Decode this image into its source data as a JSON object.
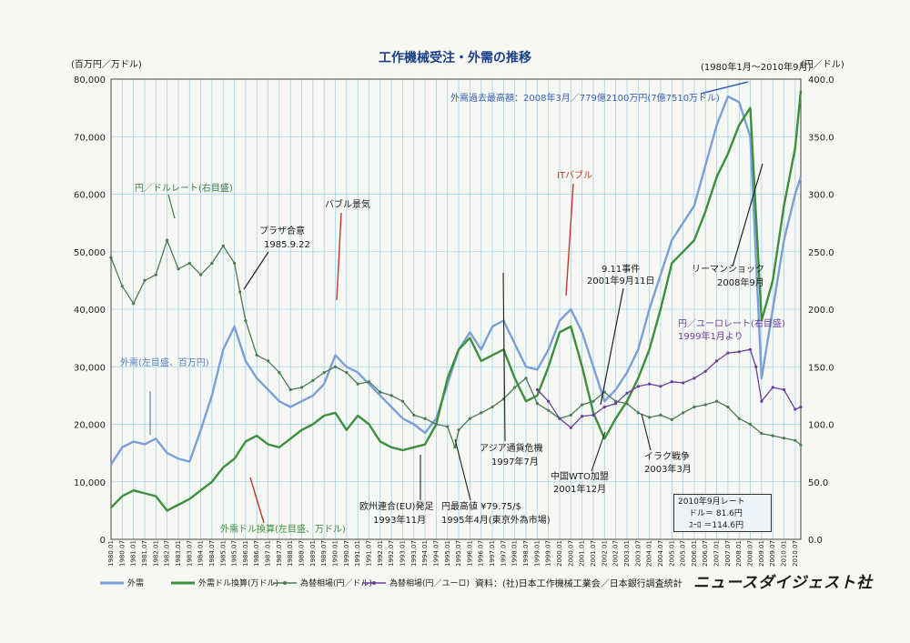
{
  "chart_data": {
    "type": "line",
    "title": "工作機械受注・外需の推移",
    "period_note": "(1980年1月～2010年9月)",
    "left_unit": "(百万円／万ドル)",
    "right_unit": "(円／ドル)",
    "y_left": {
      "min": 0,
      "max": 80000,
      "ticks": [
        0,
        10000,
        20000,
        30000,
        40000,
        50000,
        60000,
        70000,
        80000
      ],
      "tick_labels": [
        "0",
        "10,000",
        "20,000",
        "30,000",
        "40,000",
        "50,000",
        "60,000",
        "70,000",
        "80,000"
      ]
    },
    "y_right": {
      "min": 0,
      "max": 400,
      "ticks": [
        0,
        50,
        100,
        150,
        200,
        250,
        300,
        350,
        400
      ],
      "tick_labels": [
        "0.0",
        "50.0",
        "100.0",
        "150.0",
        "200.0",
        "250.0",
        "300.0",
        "350.0",
        "400.0"
      ]
    },
    "x_range": [
      1980.0,
      2010.75
    ],
    "x_tick_labels": [
      "1980.01",
      "1980.07",
      "1981.01",
      "1981.07",
      "1982.01",
      "1982.07",
      "1983.01",
      "1983.07",
      "1984.01",
      "1984.07",
      "1985.01",
      "1985.07",
      "1986.01",
      "1986.07",
      "1987.01",
      "1987.07",
      "1988.01",
      "1988.07",
      "1989.01",
      "1989.07",
      "1990.01",
      "1990.07",
      "1991.01",
      "1991.07",
      "1992.01",
      "1992.07",
      "1993.01",
      "1993.07",
      "1994.01",
      "1994.07",
      "1995.01",
      "1995.07",
      "1996.01",
      "1996.07",
      "1997.01",
      "1997.07",
      "1998.01",
      "1998.07",
      "1999.01",
      "1999.07",
      "2000.01",
      "2000.07",
      "2001.01",
      "2001.07",
      "2002.01",
      "2002.07",
      "2003.01",
      "2003.07",
      "2004.01",
      "2004.07",
      "2005.01",
      "2005.07",
      "2006.01",
      "2006.07",
      "2007.01",
      "2007.07",
      "2008.01",
      "2008.07",
      "2009.01",
      "2009.07",
      "2010.01",
      "2010.07"
    ],
    "grid": true,
    "legend_position": "bottom",
    "series": [
      {
        "name": "外需",
        "axis": "left",
        "color": "#7b9fd6",
        "x": [
          1980.0,
          1980.5,
          1981.0,
          1981.5,
          1982.0,
          1982.5,
          1983.0,
          1983.5,
          1984.0,
          1984.5,
          1985.0,
          1985.5,
          1986.0,
          1986.5,
          1987.0,
          1987.5,
          1988.0,
          1988.5,
          1989.0,
          1989.5,
          1990.0,
          1990.5,
          1991.0,
          1991.5,
          1992.0,
          1992.5,
          1993.0,
          1993.5,
          1994.0,
          1994.5,
          1995.0,
          1995.5,
          1996.0,
          1996.5,
          1997.0,
          1997.5,
          1998.0,
          1998.5,
          1999.0,
          1999.5,
          2000.0,
          2000.5,
          2001.0,
          2001.5,
          2002.0,
          2002.5,
          2003.0,
          2003.5,
          2004.0,
          2004.5,
          2005.0,
          2005.5,
          2006.0,
          2006.5,
          2007.0,
          2007.5,
          2008.0,
          2008.5,
          2009.0,
          2009.5,
          2010.0,
          2010.5,
          2010.75
        ],
        "y": [
          13000,
          16000,
          17000,
          16500,
          17500,
          15000,
          14000,
          13500,
          19000,
          25000,
          33000,
          37000,
          31000,
          28000,
          26000,
          24000,
          23000,
          24000,
          25000,
          27000,
          32000,
          30000,
          29000,
          27000,
          25000,
          23000,
          21000,
          20000,
          18500,
          21000,
          27000,
          33000,
          36000,
          33000,
          37000,
          38000,
          34000,
          30000,
          29500,
          33000,
          38000,
          40000,
          36000,
          30000,
          24000,
          26000,
          29000,
          33000,
          40000,
          46000,
          52000,
          55000,
          58000,
          65000,
          72000,
          77000,
          76000,
          70000,
          28000,
          40000,
          52000,
          60000,
          63000
        ]
      },
      {
        "name": "外需ドル換算(万ドル)",
        "axis": "left",
        "color": "#3d8f3d",
        "x": [
          1980.0,
          1980.5,
          1981.0,
          1981.5,
          1982.0,
          1982.5,
          1983.0,
          1983.5,
          1984.0,
          1984.5,
          1985.0,
          1985.5,
          1986.0,
          1986.5,
          1987.0,
          1987.5,
          1988.0,
          1988.5,
          1989.0,
          1989.5,
          1990.0,
          1990.5,
          1991.0,
          1991.5,
          1992.0,
          1992.5,
          1993.0,
          1993.5,
          1994.0,
          1994.5,
          1995.0,
          1995.5,
          1996.0,
          1996.5,
          1997.0,
          1997.5,
          1998.0,
          1998.5,
          1999.0,
          1999.5,
          2000.0,
          2000.5,
          2001.0,
          2001.5,
          2002.0,
          2002.5,
          2003.0,
          2003.5,
          2004.0,
          2004.5,
          2005.0,
          2005.5,
          2006.0,
          2006.5,
          2007.0,
          2007.5,
          2008.0,
          2008.5,
          2009.0,
          2009.5,
          2010.0,
          2010.5,
          2010.75
        ],
        "y": [
          5500,
          7500,
          8500,
          8000,
          7500,
          5000,
          6000,
          7000,
          8500,
          10000,
          12500,
          14000,
          17000,
          18000,
          16500,
          16000,
          17500,
          19000,
          20000,
          21500,
          22000,
          19000,
          21500,
          20000,
          17000,
          16000,
          15500,
          16000,
          16500,
          20000,
          28000,
          33000,
          35000,
          31000,
          32000,
          33000,
          28000,
          24000,
          25000,
          30000,
          36000,
          37000,
          30000,
          22000,
          17500,
          21000,
          24000,
          28000,
          33000,
          40000,
          48000,
          50000,
          52000,
          57000,
          63000,
          67000,
          72000,
          75000,
          38000,
          45000,
          58000,
          68000,
          78000
        ]
      },
      {
        "name": "為替相場(円／ドル)",
        "axis": "right",
        "color": "#4b7a52",
        "x": [
          1980.0,
          1980.5,
          1981.0,
          1981.5,
          1982.0,
          1982.5,
          1983.0,
          1983.5,
          1984.0,
          1984.5,
          1985.0,
          1985.5,
          1985.75,
          1986.0,
          1986.5,
          1987.0,
          1987.5,
          1988.0,
          1988.5,
          1989.0,
          1989.5,
          1990.0,
          1990.5,
          1991.0,
          1991.5,
          1992.0,
          1992.5,
          1993.0,
          1993.5,
          1994.0,
          1994.5,
          1995.0,
          1995.33,
          1995.5,
          1996.0,
          1996.5,
          1997.0,
          1997.5,
          1998.0,
          1998.5,
          1999.0,
          1999.5,
          2000.0,
          2000.5,
          2001.0,
          2001.5,
          2002.0,
          2002.5,
          2003.0,
          2003.5,
          2004.0,
          2004.5,
          2005.0,
          2005.5,
          2006.0,
          2006.5,
          2007.0,
          2007.5,
          2008.0,
          2008.5,
          2009.0,
          2009.5,
          2010.0,
          2010.5,
          2010.75
        ],
        "y": [
          245,
          220,
          205,
          225,
          230,
          260,
          235,
          240,
          230,
          240,
          255,
          240,
          215,
          190,
          160,
          155,
          145,
          130,
          132,
          138,
          145,
          150,
          145,
          135,
          137,
          128,
          125,
          120,
          108,
          105,
          100,
          98,
          80,
          95,
          105,
          110,
          115,
          122,
          132,
          140,
          118,
          112,
          105,
          108,
          117,
          120,
          128,
          120,
          118,
          110,
          106,
          108,
          104,
          110,
          115,
          117,
          120,
          115,
          105,
          100,
          92,
          90,
          88,
          86,
          82
        ]
      },
      {
        "name": "為替相場(円／ユーロ)",
        "axis": "right",
        "color": "#6a3d9a",
        "x": [
          1999.0,
          1999.5,
          2000.0,
          2000.5,
          2001.0,
          2001.5,
          2002.0,
          2002.5,
          2003.0,
          2003.5,
          2004.0,
          2004.5,
          2005.0,
          2005.5,
          2006.0,
          2006.5,
          2007.0,
          2007.5,
          2008.0,
          2008.5,
          2008.75,
          2009.0,
          2009.5,
          2010.0,
          2010.5,
          2010.75
        ],
        "y": [
          130,
          120,
          105,
          97,
          107,
          108,
          115,
          118,
          127,
          133,
          135,
          133,
          137,
          136,
          140,
          146,
          155,
          162,
          163,
          165,
          150,
          120,
          132,
          130,
          113,
          115
        ]
      }
    ],
    "annotations": [
      "外需過去最高額：2008年3月／779億2100万円(7億7510万ドル)",
      "円／ドルレート(右目盛)",
      "プラザ合意\n1985.9.22",
      "バブル景気",
      "ITバブル",
      "9.11事件\n2001年9月11日",
      "リーマンショック\n2008年9月",
      "円／ユーロレート(右目盛)\n1999年1月より",
      "外需(左目盛、百万円)",
      "アジア通貨危機\n1997年7月",
      "中国WTO加盟\n2001年12月",
      "イラク戦争\n2003年3月",
      "欧州連合(EU)発足\n1993年11月",
      "円最高値 ¥79.75/$\n1995年4月(東京外為市場)",
      "外需ドル換算(左目盛、万ドル)"
    ]
  },
  "rate_box": {
    "title": "2010年9月レート",
    "usd": "ドル＝ 81.6円",
    "eur": "ﾕｰﾛ ＝114.6円"
  },
  "legend": [
    "外需",
    "外需ドル換算(万ドル)",
    "為替相場(円／ドル)",
    "為替相場(円／ユーロ)"
  ],
  "source": "資料：(社)日本工作機械工業会／日本銀行調査統計",
  "brand": "ニュースダイジェスト社"
}
